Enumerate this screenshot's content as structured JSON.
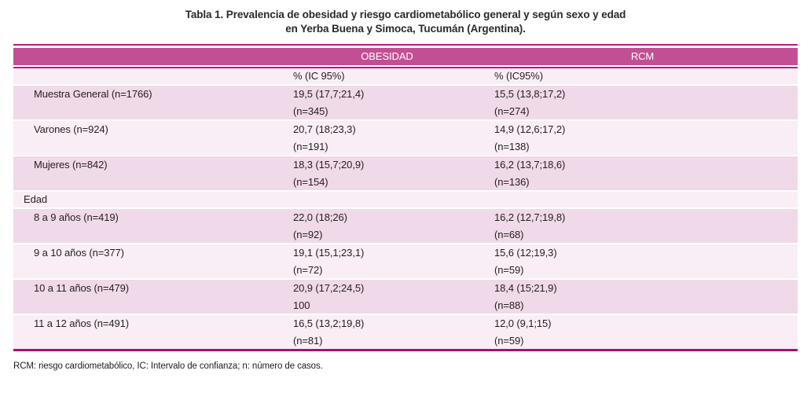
{
  "title": {
    "line1": "Tabla 1. Prevalencia de obesidad y riesgo cardiometabólico general y según sexo y edad",
    "line2": "en Yerba Buena y Simoca, Tucumán (Argentina)."
  },
  "table": {
    "header": {
      "obesidad": "OBESIDAD",
      "rcm": "RCM"
    },
    "subheader": {
      "obesidad": "% (IC 95%)",
      "rcm": "% (IC95%)"
    },
    "rows": [
      {
        "label": "Muestra General (n=1766)",
        "obesidad": [
          "19,5 (17,7;21,4)",
          "(n=345)"
        ],
        "rcm": [
          "15,5 (13,8;17,2)",
          "(n=274)"
        ],
        "shade": "dark",
        "section": false
      },
      {
        "label": "Varones (n=924)",
        "obesidad": [
          "20,7 (18;23,3)",
          "(n=191)"
        ],
        "rcm": [
          "14,9 (12,6;17,2)",
          "(n=138)"
        ],
        "shade": "light",
        "section": false
      },
      {
        "label": "Mujeres (n=842)",
        "obesidad": [
          "18,3 (15,7;20,9)",
          "(n=154)"
        ],
        "rcm": [
          "16,2 (13,7;18,6)",
          "(n=136)"
        ],
        "shade": "dark",
        "section": false
      },
      {
        "label": "Edad",
        "obesidad": [],
        "rcm": [],
        "shade": "light",
        "section": true
      },
      {
        "label": "8 a 9 años (n=419)",
        "obesidad": [
          "22,0 (18;26)",
          "(n=92)"
        ],
        "rcm": [
          "16,2 (12,7;19,8)",
          "(n=68)"
        ],
        "shade": "dark",
        "section": false
      },
      {
        "label": "9 a 10 años (n=377)",
        "obesidad": [
          "19,1 (15,1;23,1)",
          "(n=72)"
        ],
        "rcm": [
          "15,6 (12;19,3)",
          "(n=59)"
        ],
        "shade": "light",
        "section": false
      },
      {
        "label": "10 a 11 años (n=479)",
        "obesidad": [
          "20,9 (17,2;24,5)",
          "100"
        ],
        "rcm": [
          "18,4 (15;21,9)",
          "(n=88)"
        ],
        "shade": "dark",
        "section": false
      },
      {
        "label": "11 a 12 años (n=491)",
        "obesidad": [
          "16,5 (13,2;19,8)",
          "(n=81)"
        ],
        "rcm": [
          "12,0 (9,1;15)",
          "(n=59)"
        ],
        "shade": "light",
        "section": false
      }
    ]
  },
  "footnote": "RCM: riesgo cardiometabólico, IC: Intervalo de confianza; n: número de casos.",
  "colors": {
    "header_band": "#c24f93",
    "rule": "#bc1a7a",
    "rule_dark": "#aa0d6f",
    "row_light": "#f9eef5",
    "row_dark": "#f0d9e8"
  }
}
